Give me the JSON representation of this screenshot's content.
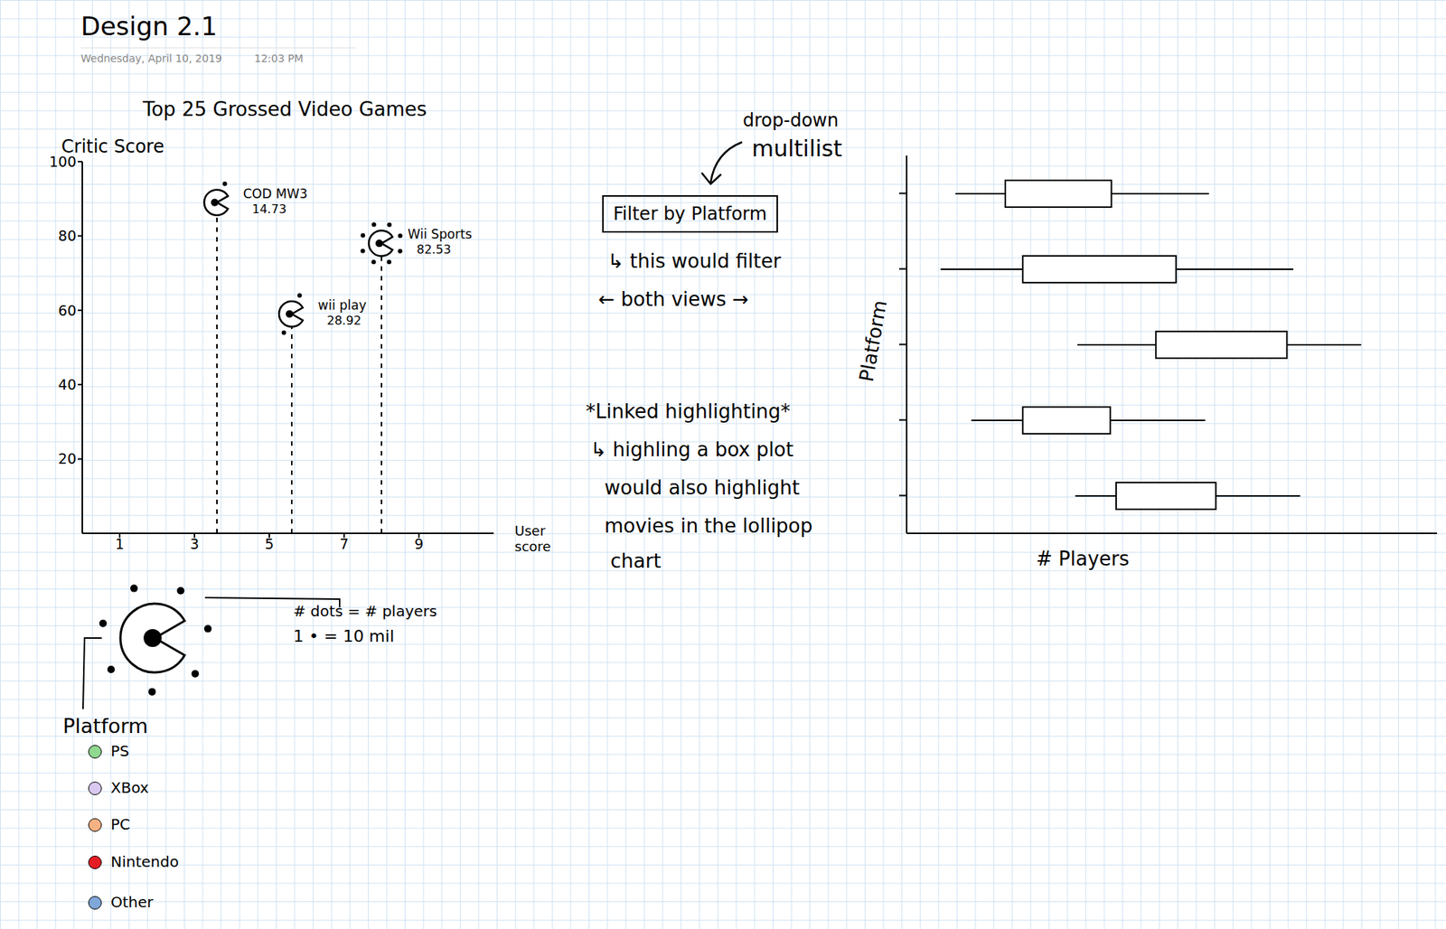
{
  "header": {
    "title": "Design 2.1",
    "date": "Wednesday, April 10, 2019",
    "time": "12:03 PM"
  },
  "chart_data": [
    {
      "type": "lollipop",
      "title": "Top 25 Grossed Video Games",
      "x_label": "User score",
      "y_label": "Critic Score",
      "xlim": [
        0,
        11
      ],
      "ylim": [
        0,
        100
      ],
      "xticks": [
        1,
        3,
        5,
        7,
        9
      ],
      "yticks": [
        20,
        40,
        60,
        80,
        100
      ],
      "grid": false,
      "points": [
        {
          "name": "COD MW3",
          "x": 3.6,
          "y": 89,
          "players": 14.73
        },
        {
          "name": "Wii Sports",
          "x": 8.0,
          "y": 78,
          "players": 82.53
        },
        {
          "name": "wii play",
          "x": 5.6,
          "y": 59,
          "players": 28.92
        }
      ],
      "size_legend": {
        "text": "# dots = # players",
        "unit_text": "1 • = 10 mil",
        "players_per_dot": 10
      },
      "color_legend": {
        "title": "Platform",
        "items": [
          {
            "name": "PS",
            "color": "#8fd88f"
          },
          {
            "name": "XBox",
            "color": "#d9c8ef"
          },
          {
            "name": "PC",
            "color": "#f4b183"
          },
          {
            "name": "Nintendo",
            "color": "#e51c23"
          },
          {
            "name": "Other",
            "color": "#7fa7d9"
          }
        ]
      }
    },
    {
      "type": "box",
      "orientation": "horizontal",
      "x_label": "# Players",
      "y_label": "Platform",
      "categories": [
        null,
        null,
        null,
        null,
        null
      ],
      "xlim": [
        0,
        100
      ],
      "xticks": [],
      "tick_labels": false,
      "grid": false,
      "boxes": [
        {
          "min": 9.2,
          "q1": 18.6,
          "q3": 38.6,
          "max": 57.0
        },
        {
          "min": 6.4,
          "q1": 21.9,
          "q3": 50.8,
          "max": 72.9
        },
        {
          "min": 32.2,
          "q1": 47.0,
          "q3": 71.7,
          "max": 85.7
        },
        {
          "min": 12.2,
          "q1": 21.9,
          "q3": 38.4,
          "max": 56.3
        },
        {
          "min": 31.8,
          "q1": 39.5,
          "q3": 58.3,
          "max": 74.2
        }
      ]
    }
  ],
  "controls": {
    "dropdown_note": [
      "drop-down",
      "multilist"
    ],
    "filter_button": "Filter by Platform",
    "filter_note": [
      "↳ this would filter",
      "← both views →"
    ],
    "linked_note": [
      "*Linked highlighting*",
      "↳ highling a box plot",
      "would also highlight",
      "movies in the lollipop",
      "chart"
    ]
  }
}
